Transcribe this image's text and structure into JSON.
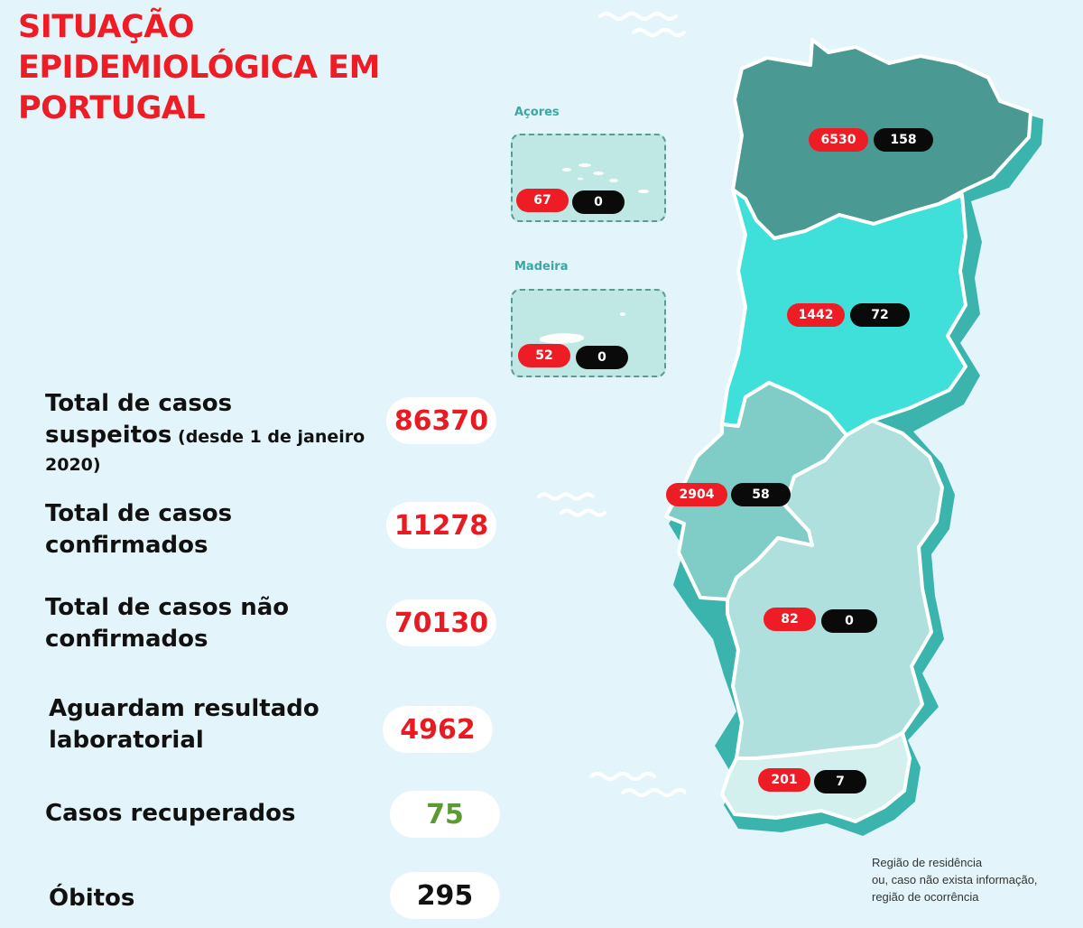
{
  "title": [
    "SITUAÇÃO",
    "EPIDEMIOLÓGICA EM",
    "PORTUGAL"
  ],
  "islands": {
    "acores": {
      "label": "Açores",
      "cases": "67",
      "deaths": "0"
    },
    "madeira": {
      "label": "Madeira",
      "cases": "52",
      "deaths": "0"
    }
  },
  "regions": [
    {
      "name": "norte",
      "cases": "6530",
      "deaths": "158"
    },
    {
      "name": "centro",
      "cases": "1442",
      "deaths": "72"
    },
    {
      "name": "lisboa",
      "cases": "2904",
      "deaths": "58"
    },
    {
      "name": "alentejo",
      "cases": "82",
      "deaths": "0"
    },
    {
      "name": "algarve",
      "cases": "201",
      "deaths": "7"
    }
  ],
  "stats": {
    "suspeitos": {
      "label_1": "Total de casos",
      "label_2": "suspeitos",
      "note": " (desde 1 de janeiro",
      "label_3": "2020)",
      "value": "86370"
    },
    "confirmados": {
      "label_1": "Total de casos",
      "label_2": "confirmados",
      "value": "11278"
    },
    "nao_confirmados": {
      "label_1": "Total de casos não",
      "label_2": "confirmados",
      "value": "70130"
    },
    "aguardam": {
      "label_1": "Aguardam resultado",
      "label_2": "laboratorial",
      "value": "4962"
    },
    "recuperados": {
      "label_1": "Casos recuperados",
      "value": "75"
    },
    "obitos": {
      "label_1": "Óbitos",
      "value": "295"
    }
  },
  "footnote": [
    "Região de residência",
    "ou, caso não exista informação,",
    "região de ocorrência"
  ],
  "colors": {
    "case_red": "#ee1c25",
    "recovered_green": "#5b9a35",
    "norte": "#4a9a93",
    "centro": "#3fdfda",
    "lisboa": "#7fcdc6",
    "alentejo": "#b0e0de",
    "algarve": "#d3f0ee"
  }
}
